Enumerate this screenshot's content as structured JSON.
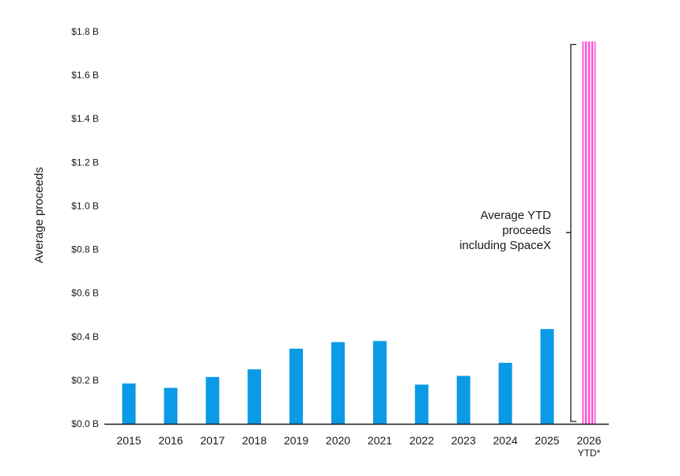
{
  "chart_data": {
    "type": "bar",
    "title": "",
    "xlabel": "",
    "ylabel": "Average proceeds",
    "ylim": [
      0,
      1.8
    ],
    "y_ticks": [
      "$0.0 B",
      "$0.2 B",
      "$0.4 B",
      "$0.6 B",
      "$0.8 B",
      "$1.0 B",
      "$1.2 B",
      "$1.4 B",
      "$1.6 B",
      "$1.8 B"
    ],
    "y_tick_values": [
      0,
      0.2,
      0.4,
      0.6,
      0.8,
      1.0,
      1.2,
      1.4,
      1.6,
      1.8
    ],
    "categories": [
      "2015",
      "2016",
      "2017",
      "2018",
      "2019",
      "2020",
      "2021",
      "2022",
      "2023",
      "2024",
      "2025",
      "2026\nYTD*"
    ],
    "values": [
      0.185,
      0.165,
      0.215,
      0.25,
      0.345,
      0.375,
      0.38,
      0.18,
      0.22,
      0.28,
      0.435,
      1.755
    ],
    "bar_colors": [
      "#0a9ae6",
      "#0a9ae6",
      "#0a9ae6",
      "#0a9ae6",
      "#0a9ae6",
      "#0a9ae6",
      "#0a9ae6",
      "#0a9ae6",
      "#0a9ae6",
      "#0a9ae6",
      "#0a9ae6",
      "#ff66dd"
    ],
    "highlight_pattern": "vertical-stripes",
    "grid": false,
    "annotation": {
      "lines": [
        "Average YTD",
        "proceeds",
        "including SpaceX"
      ],
      "target_category": "2026\nYTD*",
      "bracket": true
    }
  }
}
